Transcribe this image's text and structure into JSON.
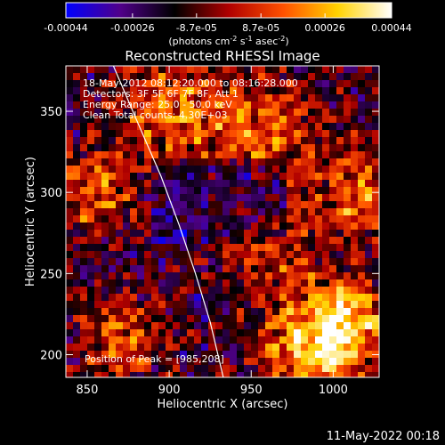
{
  "chart_data": {
    "type": "heatmap",
    "title": "Reconstructed RHESSI Image",
    "xlabel": "Heliocentric X (arcsec)",
    "ylabel": "Heliocentric Y (arcsec)",
    "xlim": [
      837,
      1028
    ],
    "ylim": [
      186,
      378
    ],
    "x_ticks": [
      850,
      900,
      950,
      1000
    ],
    "x_tick_labels": [
      "850",
      "900",
      "950",
      "1000"
    ],
    "y_ticks": [
      200,
      250,
      300,
      350
    ],
    "y_tick_labels": [
      "200",
      "250",
      "300",
      "350"
    ],
    "colorbar": {
      "range": [
        -0.00044,
        0.00044
      ],
      "tick_values": [
        -0.00044,
        -0.00026,
        -8.7e-05,
        8.7e-05,
        0.00026,
        0.00044
      ],
      "tick_labels": [
        "-0.00044",
        "-0.00026",
        "-8.7e-05",
        "8.7e-05",
        "0.00026",
        "0.00044"
      ],
      "unit_parts": {
        "prefix": "(photons cm",
        "exp1": "-2",
        "mid1": " s",
        "exp2": "-1",
        "mid2": " asec",
        "exp3": "-2",
        "suffix": ")"
      },
      "colors": [
        "#0000ff",
        "#50008a",
        "#000000",
        "#b00000",
        "#ff5000",
        "#ffd200",
        "#ffffff"
      ]
    },
    "annotations": [
      "18-May-2012 08:12:20.000 to 08:16:28.000",
      "Detectors: 3F 5F 6F 7F 8F, Att 1",
      "Energy Range: 25.0 - 50.0 keV",
      "Clean    Total counts: 4.30E+03"
    ],
    "peak_label": "Position of Peak = [985,208]",
    "peak": [
      985,
      208
    ],
    "limb_line": [
      [
        866,
        378
      ],
      [
        880,
        345
      ],
      [
        895,
        310
      ],
      [
        906,
        280
      ],
      [
        916,
        250
      ],
      [
        925,
        220
      ],
      [
        933,
        186
      ]
    ],
    "grid": false,
    "footer": "11-May-2022 00:18"
  }
}
